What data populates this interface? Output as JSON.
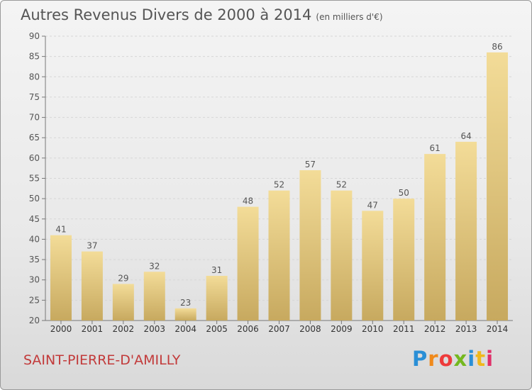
{
  "title": "Autres Revenus Divers de 2000 à 2014",
  "subtitle": "(en milliers d'€)",
  "location": "SAINT-PIERRE-D'AMILLY",
  "logo": {
    "letters": [
      "P",
      "r",
      "o",
      "x",
      "i",
      "t",
      "i"
    ],
    "colors": [
      "#2a8fd6",
      "#f08a1c",
      "#ee3b3b",
      "#74b81f",
      "#2a8fd6",
      "#f0b81c",
      "#e0306a"
    ]
  },
  "colors": {
    "bar_top": "#f3dc98",
    "bar_bottom": "#c7a95f",
    "label": "#555555"
  },
  "chart_data": {
    "type": "bar",
    "categories": [
      "2000",
      "2001",
      "2002",
      "2003",
      "2004",
      "2005",
      "2006",
      "2007",
      "2008",
      "2009",
      "2010",
      "2011",
      "2012",
      "2013",
      "2014"
    ],
    "values": [
      41,
      37,
      29,
      32,
      23,
      31,
      48,
      52,
      57,
      52,
      47,
      50,
      61,
      64,
      86
    ],
    "ylim": [
      20,
      90
    ],
    "yticks": [
      20,
      25,
      30,
      35,
      40,
      45,
      50,
      55,
      60,
      65,
      70,
      75,
      80,
      85,
      90
    ],
    "grid": true,
    "data_labels": true
  }
}
